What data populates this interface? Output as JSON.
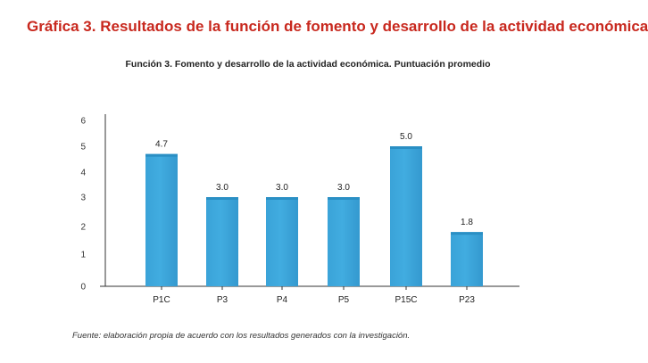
{
  "page": {
    "title": "Gráfica 3. Resultados de la función de fomento y desarrollo de la actividad económica",
    "footnote": "Fuente: elaboración propia de acuerdo con los resultados generados con la investigación."
  },
  "chart_data": {
    "type": "bar",
    "title": "Función 3. Fomento y desarrollo de la actividad económica. Puntuación promedio",
    "categories": [
      "P1C",
      "P3",
      "P4",
      "P5",
      "P15C",
      "P23"
    ],
    "values": [
      4.7,
      3.0,
      3.0,
      3.0,
      5.0,
      1.8
    ],
    "value_labels": [
      "4.7",
      "3.0",
      "3.0",
      "3.0",
      "5.0",
      "1.8"
    ],
    "y_ticks": [
      0,
      1,
      2,
      3,
      4,
      5,
      6
    ],
    "ylim": [
      0,
      6
    ],
    "grid": false,
    "legend": "none",
    "colors": {
      "bar": "#41ace0",
      "bar_top": "#2a8fc4",
      "title": "#c8281e",
      "axis": "#333333"
    }
  }
}
